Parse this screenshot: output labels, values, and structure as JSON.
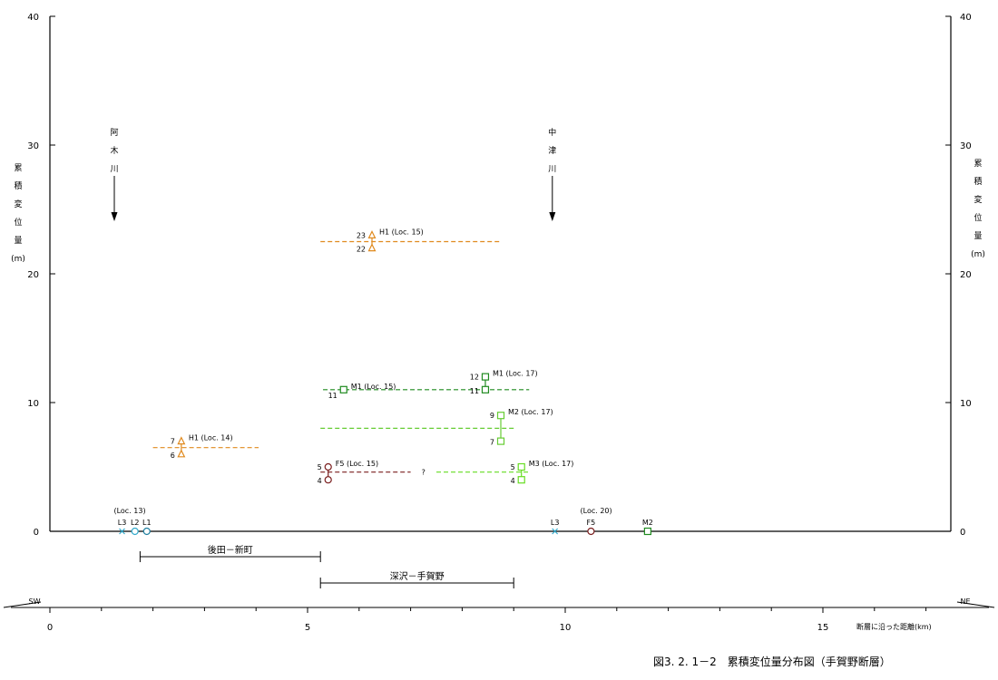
{
  "chart_data": {
    "type": "scatter",
    "title": "",
    "xlabel": "断層に沿った距離(km)",
    "ylabel_chars": [
      "累",
      "積",
      "変",
      "位",
      "量",
      "(m)"
    ],
    "xlim": [
      0,
      17
    ],
    "ylim": [
      0,
      40
    ],
    "x_ticks": [
      0,
      5,
      10,
      15
    ],
    "x_minor_step": 1,
    "y_ticks": [
      0,
      10,
      20,
      30,
      40
    ],
    "grid": false,
    "caption": "図3. 2. 1－2　累積変位量分布図（手賀野断層）",
    "colors": {
      "H1": "#e08a1e",
      "M1": "#1f8a1f",
      "M2": "#66cc33",
      "M3": "#66dd22",
      "F5": "#7a1e1e",
      "L": "#33aacc",
      "axis": "#000000"
    },
    "rivers": [
      {
        "chars": [
          "阿",
          "木",
          "川"
        ],
        "x": 1.25
      },
      {
        "chars": [
          "中",
          "津",
          "川"
        ],
        "x": 9.75
      }
    ],
    "direction": {
      "left": "SW",
      "right": "NE"
    },
    "sections": [
      {
        "label": "後田－新町",
        "x0": 1.75,
        "x1": 5.25
      },
      {
        "label": "深沢－手賀野",
        "x0": 5.25,
        "x1": 9.0
      }
    ],
    "ranges": [
      {
        "surface": "H1",
        "x0": 5.25,
        "x1": 8.75,
        "y": 22.5
      },
      {
        "surface": "M1",
        "x0": 5.3,
        "x1": 9.3,
        "y": 11.0
      },
      {
        "surface": "M2",
        "x0": 5.25,
        "x1": 9.0,
        "y": 8.0
      },
      {
        "surface": "H1",
        "x0": 2.0,
        "x1": 4.05,
        "y": 6.5
      },
      {
        "surface": "F5",
        "x0": 5.25,
        "x1": 7.0,
        "y": 4.6
      },
      {
        "surface": "M3",
        "x0": 7.5,
        "x1": 9.3,
        "y": 4.6
      }
    ],
    "question_mark": {
      "text": "?",
      "x": 7.25,
      "y": 4.6
    },
    "measurements": [
      {
        "surface": "H1",
        "loc": "(Loc. 15)",
        "label": "H1",
        "x": 6.25,
        "y_max": 23,
        "y_min": 22,
        "max_label": "23",
        "min_label": "22",
        "marker": "triangle"
      },
      {
        "surface": "M1",
        "loc": "(Loc. 15)",
        "label": "M1",
        "x": 5.7,
        "y_max": 11,
        "y_min": 11,
        "max_label": "",
        "min_label": "11",
        "marker": "square"
      },
      {
        "surface": "M1",
        "loc": "(Loc. 17)",
        "label": "M1",
        "x": 8.45,
        "y_max": 12,
        "y_min": 11,
        "max_label": "12",
        "min_label": "11",
        "marker": "square"
      },
      {
        "surface": "M2",
        "loc": "(Loc. 17)",
        "label": "M2",
        "x": 8.75,
        "y_max": 9,
        "y_min": 7,
        "max_label": "9",
        "min_label": "7",
        "marker": "square"
      },
      {
        "surface": "H1",
        "loc": "(Loc. 14)",
        "label": "H1",
        "x": 2.55,
        "y_max": 7,
        "y_min": 6,
        "max_label": "7",
        "min_label": "6",
        "marker": "triangle"
      },
      {
        "surface": "F5",
        "loc": "(Loc. 15)",
        "label": "F5",
        "x": 5.4,
        "y_max": 5,
        "y_min": 4,
        "max_label": "5",
        "min_label": "4",
        "marker": "circle"
      },
      {
        "surface": "M3",
        "loc": "(Loc. 17)",
        "label": "M3",
        "x": 9.15,
        "y_max": 5,
        "y_min": 4,
        "max_label": "5",
        "min_label": "4",
        "marker": "square"
      }
    ],
    "zero_points": [
      {
        "label": "L3",
        "x": 1.4,
        "marker": "x",
        "color": "#33aacc"
      },
      {
        "label": "L2",
        "x": 1.65,
        "marker": "circle",
        "color": "#33aacc"
      },
      {
        "label": "L1",
        "x": 1.88,
        "marker": "circle",
        "color": "#1f7fa0"
      },
      {
        "label": "L3",
        "x": 9.8,
        "marker": "x",
        "color": "#33aacc"
      },
      {
        "label": "F5",
        "x": 10.5,
        "marker": "circle",
        "color": "#7a1e1e"
      },
      {
        "label": "M2",
        "x": 11.6,
        "marker": "square",
        "color": "#1f8a1f"
      }
    ],
    "zero_group_labels": [
      {
        "text": "(Loc. 13)",
        "x": 1.55
      },
      {
        "text": "(Loc. 20)",
        "x": 10.6
      }
    ]
  }
}
